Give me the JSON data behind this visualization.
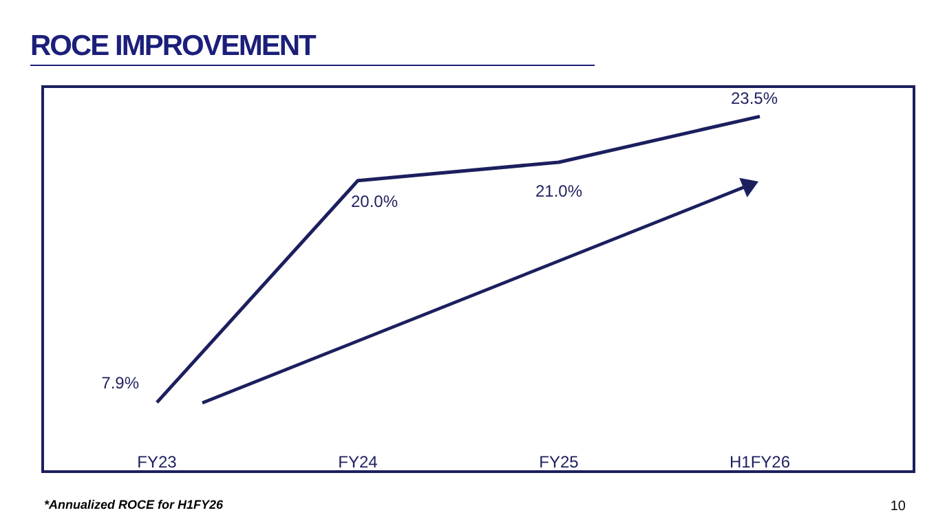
{
  "chart_data": {
    "type": "line",
    "title": "ROCE IMPROVEMENT",
    "categories": [
      "FY23",
      "FY24",
      "FY25",
      "H1FY26"
    ],
    "series": [
      {
        "color": "#1c1f5e",
        "values": [
          7.9,
          20.0,
          21.0,
          23.5
        ],
        "value_labels": [
          "7.9%",
          "20.0%",
          "21.0%",
          "23.5%"
        ]
      }
    ],
    "marker": "none",
    "line_style": "solid",
    "grid": false,
    "tick_labels": "x",
    "annotations": [
      "*Annualized ROCE for H1FY26",
      "10"
    ]
  }
}
